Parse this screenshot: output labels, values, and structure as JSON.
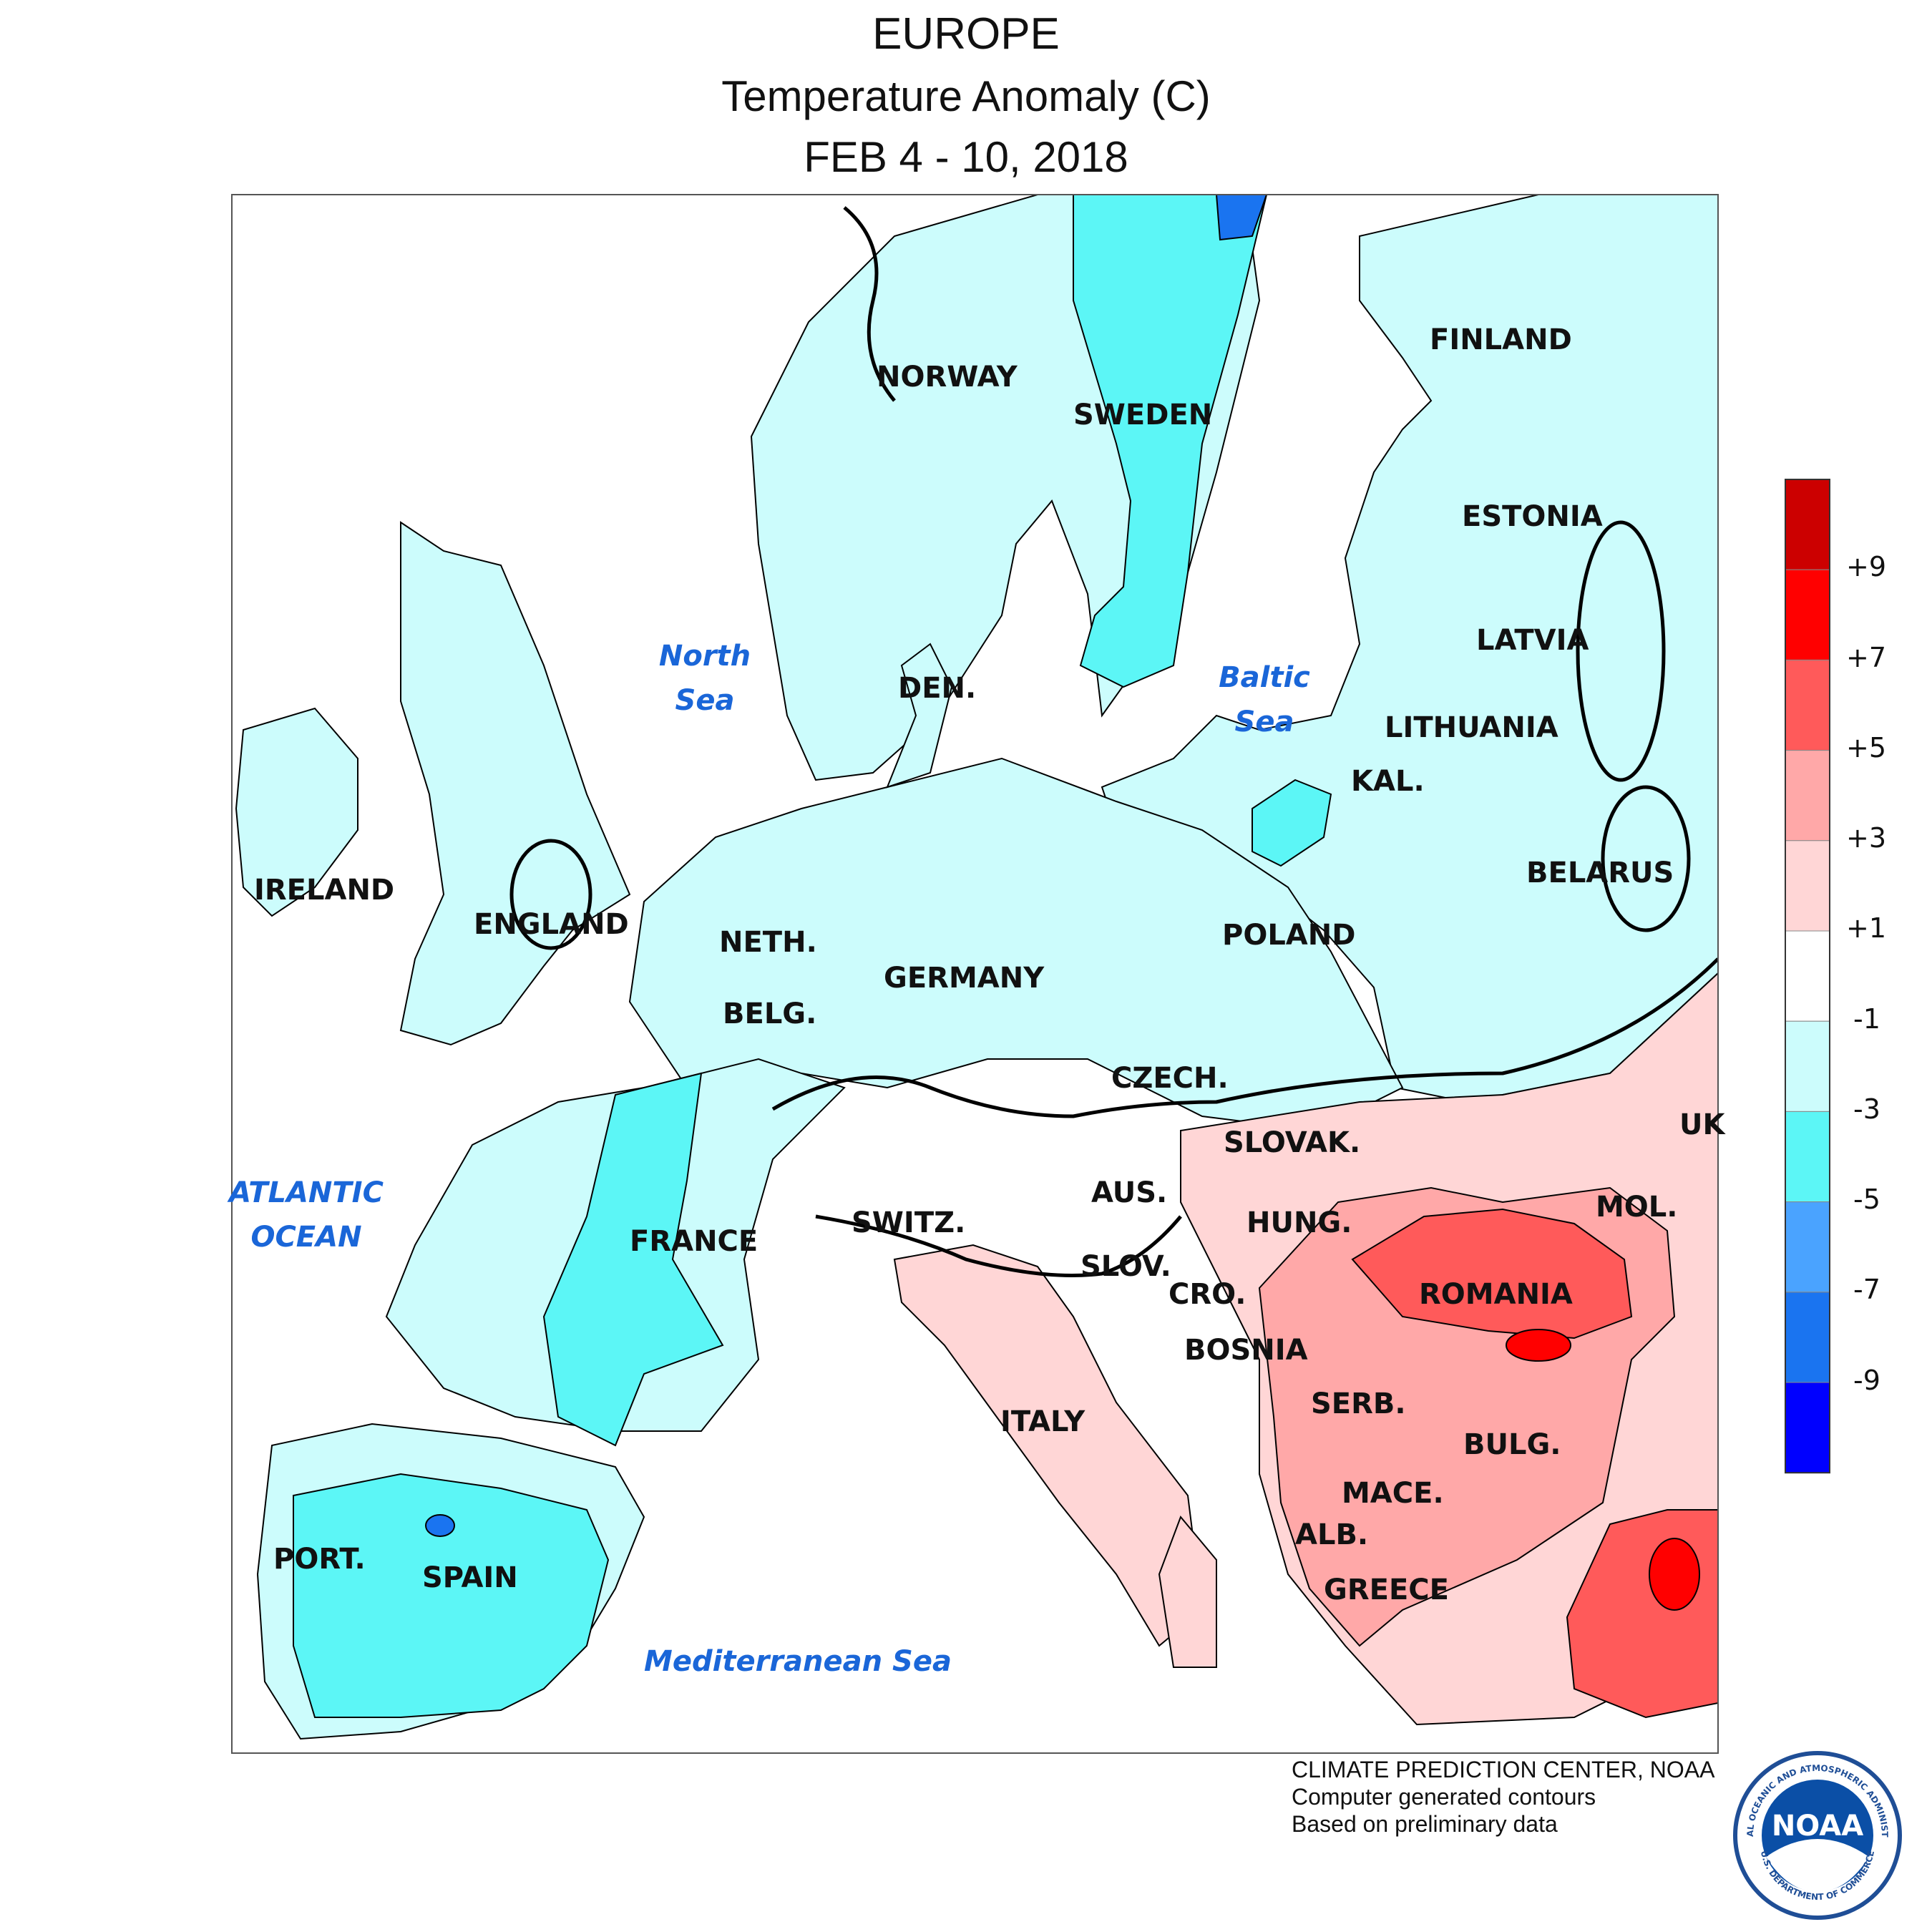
{
  "title": {
    "line1": "EUROPE",
    "line2": "Temperature Anomaly (C)",
    "line3": "FEB 4 - 10, 2018"
  },
  "map": {
    "countries": [
      "NORWAY",
      "SWEDEN",
      "FINLAND",
      "ESTONIA",
      "LATVIA",
      "LITHUANIA",
      "KAL.",
      "BELARUS",
      "POLAND",
      "DEN.",
      "IRELAND",
      "ENGLAND",
      "NETH.",
      "BELG.",
      "GERMANY",
      "CZECH.",
      "SLOVAK.",
      "UK",
      "AUS.",
      "HUNG.",
      "MOL.",
      "SWITZ.",
      "FRANCE",
      "SLOV.",
      "CRO.",
      "ROMANIA",
      "BOSNIA",
      "SERB.",
      "BULG.",
      "ITALY",
      "MACE.",
      "ALB.",
      "GREECE",
      "PORT.",
      "SPAIN"
    ],
    "seas": [
      "North Sea",
      "Baltic Sea",
      "ATLANTIC OCEAN",
      "Mediterranean Sea"
    ]
  },
  "legend": {
    "labels": [
      "+9",
      "+7",
      "+5",
      "+3",
      "+1",
      "-1",
      "-3",
      "-5",
      "-7",
      "-9"
    ],
    "colors": [
      "#cc0000",
      "#ff0000",
      "#ff5a5a",
      "#ffa8a8",
      "#ffd6d6",
      "#ffffff",
      "#ccfcfc",
      "#5cf6f6",
      "#4aa3ff",
      "#1a74f0",
      "#0000ff"
    ]
  },
  "credits": {
    "line1": "CLIMATE PREDICTION CENTER, NOAA",
    "line2": "Computer generated contours",
    "line3": "Based on preliminary data"
  },
  "logo": {
    "text": "NOAA",
    "ring_text": "NATIONAL OCEANIC AND ATMOSPHERIC ADMINISTRATION",
    "ring_text_bottom": "U.S. DEPARTMENT OF COMMERCE"
  }
}
